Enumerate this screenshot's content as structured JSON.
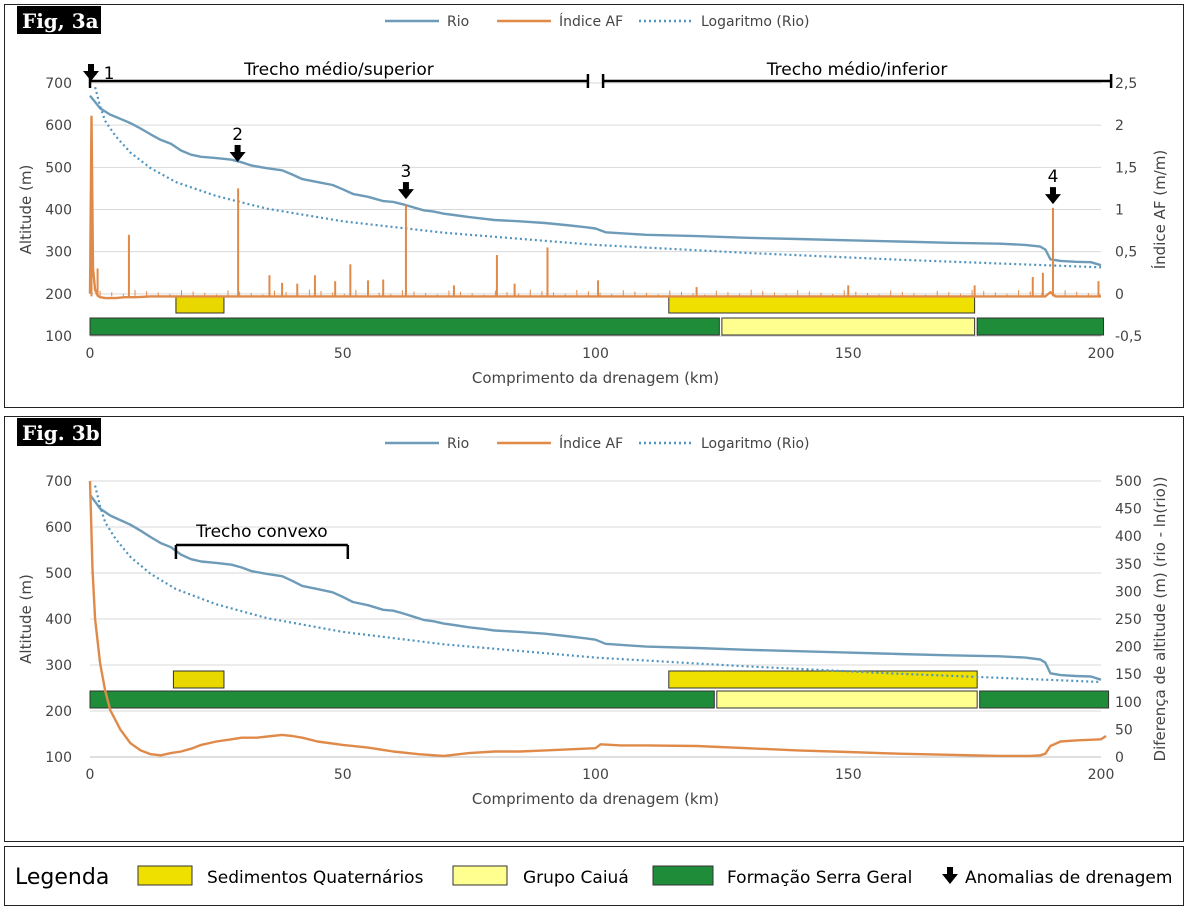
{
  "colors": {
    "rio": "#6e9bb8",
    "af": "#e08a4a",
    "log": "#4f94bf",
    "sed_quat": "#f0e000",
    "sed_quat_a": "#e8d800",
    "caiua": "#ffff90",
    "serra_geral": "#1f8c3a",
    "grid": "#d9d9d9"
  },
  "legend": {
    "title": "Legenda",
    "items": [
      {
        "label": "Sedimentos Quaternários",
        "swatch": "sed_quat"
      },
      {
        "label": "Grupo Caiuá",
        "swatch": "caiua"
      },
      {
        "label": "Formação Serra Geral",
        "swatch": "serra_geral"
      },
      {
        "label": "Anomalias de drenagem",
        "swatch": "arrow"
      }
    ]
  },
  "chart_data": [
    {
      "type": "line",
      "fig_label": "Fig, 3a",
      "xlabel": "Comprimento da drenagem (km)",
      "ylabel": "Altitude (m)",
      "y2label": "Índice AF (m/m)",
      "xlim": [
        0,
        200
      ],
      "ylim": [
        100,
        700
      ],
      "y2lim": [
        -0.5,
        2.5
      ],
      "xticks": [
        "0",
        "50",
        "100",
        "150",
        "200"
      ],
      "yticks": [
        "100",
        "200",
        "300",
        "400",
        "500",
        "600",
        "700"
      ],
      "y2ticks": [
        "-0,5",
        "0",
        "0,5",
        "1",
        "1,5",
        "2",
        "2,5"
      ],
      "legend_position": "top",
      "series": [
        {
          "name": "Rio",
          "style": "solid",
          "color": "rio",
          "axis": "left",
          "x": [
            0,
            1,
            2,
            4,
            6,
            8,
            10,
            12,
            14,
            16,
            18,
            20,
            22,
            25,
            28,
            30,
            32,
            35,
            38,
            40,
            42,
            45,
            48,
            50,
            52,
            55,
            58,
            60,
            62,
            64,
            66,
            68,
            70,
            72,
            75,
            78,
            80,
            85,
            90,
            95,
            98,
            100,
            102,
            110,
            120,
            130,
            140,
            150,
            160,
            170,
            180,
            185,
            188,
            189,
            190,
            192,
            195,
            198,
            200
          ],
          "y": [
            670,
            655,
            640,
            625,
            615,
            605,
            592,
            578,
            565,
            556,
            540,
            530,
            525,
            522,
            518,
            512,
            504,
            498,
            493,
            483,
            472,
            465,
            458,
            448,
            437,
            430,
            420,
            418,
            412,
            405,
            398,
            395,
            390,
            387,
            382,
            378,
            375,
            372,
            368,
            362,
            358,
            355,
            346,
            340,
            337,
            333,
            330,
            327,
            324,
            321,
            319,
            316,
            312,
            305,
            282,
            278,
            276,
            275,
            268
          ]
        },
        {
          "name": "Logaritmo (Rio)",
          "style": "dotted",
          "color": "log",
          "axis": "left",
          "x": [
            1,
            2,
            3,
            5,
            8,
            12,
            17,
            25,
            35,
            50,
            70,
            100,
            130,
            160,
            200
          ],
          "y": [
            690,
            645,
            610,
            575,
            535,
            498,
            465,
            432,
            402,
            372,
            345,
            316,
            297,
            281,
            263
          ]
        },
        {
          "name": "Índice AF",
          "style": "solid",
          "color": "af",
          "axis": "right",
          "x": [
            0,
            0.3,
            0.6,
            1,
            1.5,
            2,
            3,
            4,
            5,
            7,
            9,
            12,
            15,
            20,
            25,
            30,
            40,
            50,
            60,
            70,
            80,
            90,
            100,
            110,
            120,
            130,
            140,
            150,
            160,
            170,
            180,
            186,
            188,
            189,
            190,
            191,
            192,
            195,
            200
          ],
          "y": [
            0,
            2.1,
            0.3,
            0.05,
            -0.02,
            -0.04,
            -0.05,
            -0.05,
            -0.05,
            -0.04,
            -0.04,
            -0.03,
            -0.03,
            -0.03,
            -0.03,
            -0.03,
            -0.03,
            -0.03,
            -0.03,
            -0.03,
            -0.03,
            -0.03,
            -0.03,
            -0.03,
            -0.03,
            -0.03,
            -0.03,
            -0.03,
            -0.03,
            -0.03,
            -0.03,
            -0.03,
            -0.03,
            -0.03,
            0.02,
            -0.03,
            -0.03,
            -0.03,
            -0.03
          ],
          "spikes": [
            {
              "x": 0.3,
              "y": 2.05
            },
            {
              "x": 1.5,
              "y": 0.3
            },
            {
              "x": 7.7,
              "y": 0.7
            },
            {
              "x": 29.3,
              "y": 1.25
            },
            {
              "x": 35.5,
              "y": 0.22
            },
            {
              "x": 38,
              "y": 0.13
            },
            {
              "x": 41,
              "y": 0.12
            },
            {
              "x": 44.5,
              "y": 0.22
            },
            {
              "x": 48.5,
              "y": 0.15
            },
            {
              "x": 51.5,
              "y": 0.35
            },
            {
              "x": 55,
              "y": 0.16
            },
            {
              "x": 58,
              "y": 0.17
            },
            {
              "x": 62.5,
              "y": 1.05
            },
            {
              "x": 72,
              "y": 0.1
            },
            {
              "x": 80.5,
              "y": 0.46
            },
            {
              "x": 84,
              "y": 0.12
            },
            {
              "x": 90.5,
              "y": 0.55
            },
            {
              "x": 100.5,
              "y": 0.16
            },
            {
              "x": 120,
              "y": 0.08
            },
            {
              "x": 150,
              "y": 0.1
            },
            {
              "x": 175,
              "y": 0.1
            },
            {
              "x": 186.5,
              "y": 0.2
            },
            {
              "x": 188.5,
              "y": 0.25
            },
            {
              "x": 190.5,
              "y": 1.02
            },
            {
              "x": 199.5,
              "y": 0.15
            }
          ]
        }
      ],
      "brackets": [
        {
          "label": "Trecho médio/superior",
          "x0": 0,
          "x1": 98.5
        },
        {
          "label": "Trecho médio/inferior",
          "x0": 101.5,
          "x1": 202
        }
      ],
      "anomalies": [
        {
          "label": "1",
          "x": 0.2,
          "y": 700
        },
        {
          "label": "2",
          "x": 29.2,
          "y": 508
        },
        {
          "label": "3",
          "x": 62.5,
          "y": 420
        },
        {
          "label": "4",
          "x": 190.5,
          "y": 408
        }
      ],
      "geology": [
        {
          "unit": "sed_quat_a",
          "x0": 17,
          "x1": 26.5,
          "row": 0
        },
        {
          "unit": "sed_quat",
          "x0": 114.5,
          "x1": 175,
          "row": 0
        },
        {
          "unit": "serra_geral",
          "x0": 0,
          "x1": 124.5,
          "row": 1
        },
        {
          "unit": "caiua",
          "x0": 125,
          "x1": 175,
          "row": 1
        },
        {
          "unit": "serra_geral",
          "x0": 175.5,
          "x1": 200.5,
          "row": 1
        }
      ]
    },
    {
      "type": "line",
      "fig_label": "Fig. 3b",
      "xlabel": "Comprimento da drenagem (km)",
      "ylabel": "Altitude (m)",
      "y2label": "Diferença de altitude (m) (rio - ln(rio))",
      "xlim": [
        0,
        200
      ],
      "ylim": [
        100,
        700
      ],
      "y2lim": [
        0,
        500
      ],
      "xticks": [
        "0",
        "50",
        "100",
        "150",
        "200"
      ],
      "yticks": [
        "100",
        "200",
        "300",
        "400",
        "500",
        "600",
        "700"
      ],
      "y2ticks": [
        "0",
        "50",
        "100",
        "150",
        "200",
        "250",
        "300",
        "350",
        "400",
        "450",
        "500"
      ],
      "legend_position": "top",
      "series": [
        {
          "name": "Rio",
          "style": "solid",
          "color": "rio",
          "axis": "left",
          "x": [
            0,
            1,
            2,
            4,
            6,
            8,
            10,
            12,
            14,
            16,
            18,
            20,
            22,
            25,
            28,
            30,
            32,
            35,
            38,
            40,
            42,
            45,
            48,
            50,
            52,
            55,
            58,
            60,
            62,
            64,
            66,
            68,
            70,
            72,
            75,
            78,
            80,
            85,
            90,
            95,
            98,
            100,
            102,
            110,
            120,
            130,
            140,
            150,
            160,
            170,
            180,
            185,
            188,
            189,
            190,
            192,
            195,
            198,
            200
          ],
          "y": [
            670,
            655,
            640,
            625,
            615,
            605,
            592,
            578,
            565,
            556,
            540,
            530,
            525,
            522,
            518,
            512,
            504,
            498,
            493,
            483,
            472,
            465,
            458,
            448,
            437,
            430,
            420,
            418,
            412,
            405,
            398,
            395,
            390,
            387,
            382,
            378,
            375,
            372,
            368,
            362,
            358,
            355,
            346,
            340,
            337,
            333,
            330,
            327,
            324,
            321,
            319,
            316,
            312,
            305,
            282,
            278,
            276,
            275,
            268
          ]
        },
        {
          "name": "Logaritmo (Rio)",
          "style": "dotted",
          "color": "log",
          "axis": "left",
          "x": [
            1,
            2,
            3,
            5,
            8,
            12,
            17,
            25,
            35,
            50,
            70,
            100,
            130,
            160,
            200
          ],
          "y": [
            690,
            645,
            610,
            575,
            535,
            498,
            465,
            432,
            402,
            372,
            345,
            316,
            297,
            281,
            263
          ]
        },
        {
          "name": "Índice AF",
          "style": "solid",
          "color": "af",
          "axis": "right",
          "x": [
            0,
            0.5,
            1,
            2,
            3,
            4,
            6,
            8,
            10,
            12,
            14,
            16,
            18,
            20,
            22,
            25,
            28,
            30,
            33,
            36,
            38,
            40,
            42,
            45,
            50,
            55,
            60,
            65,
            70,
            75,
            80,
            85,
            90,
            95,
            100,
            101,
            105,
            110,
            120,
            130,
            140,
            150,
            160,
            170,
            180,
            186,
            188,
            189,
            190,
            192,
            195,
            200,
            201
          ],
          "y": [
            500,
            340,
            250,
            170,
            120,
            85,
            50,
            25,
            12,
            5,
            3,
            7,
            10,
            15,
            22,
            28,
            32,
            35,
            35,
            38,
            40,
            38,
            35,
            28,
            22,
            17,
            10,
            5,
            2,
            7,
            10,
            10,
            12,
            14,
            16,
            23,
            21,
            21,
            20,
            16,
            12,
            9,
            6,
            4,
            2,
            2,
            3,
            6,
            20,
            28,
            30,
            32,
            38
          ]
        }
      ],
      "brackets": [
        {
          "label": "Trecho convexo",
          "x0": 17,
          "x1": 51
        }
      ],
      "geology": [
        {
          "unit": "sed_quat_a",
          "x0": 16.5,
          "x1": 26.5,
          "row": 0
        },
        {
          "unit": "sed_quat",
          "x0": 114.5,
          "x1": 175.5,
          "row": 0
        },
        {
          "unit": "serra_geral",
          "x0": 0,
          "x1": 123.5,
          "row": 1
        },
        {
          "unit": "caiua",
          "x0": 124,
          "x1": 175.5,
          "row": 1
        },
        {
          "unit": "serra_geral",
          "x0": 176,
          "x1": 201.5,
          "row": 1
        }
      ]
    }
  ]
}
